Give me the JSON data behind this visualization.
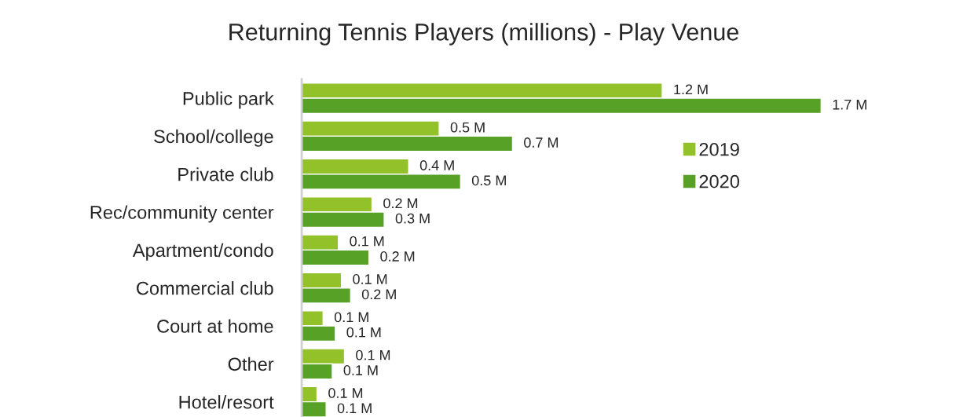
{
  "chart_data": {
    "type": "bar",
    "orientation": "horizontal",
    "title": "Returning Tennis Players (millions) - Play Venue",
    "categories": [
      "Public park",
      "School/college",
      "Private club",
      "Rec/community center",
      "Apartment/condo",
      "Commercial club",
      "Court at home",
      "Other",
      "Hotel/resort"
    ],
    "series": [
      {
        "name": "2019",
        "color": "#92c12a",
        "values": [
          1.18,
          0.45,
          0.35,
          0.23,
          0.12,
          0.13,
          0.07,
          0.14,
          0.05
        ],
        "value_labels": [
          "1.2 M",
          "0.5 M",
          "0.4 M",
          "0.2 M",
          "0.1 M",
          "0.1 M",
          "0.1 M",
          "0.1 M",
          "0.1 M"
        ]
      },
      {
        "name": "2020",
        "color": "#57a126",
        "values": [
          1.7,
          0.69,
          0.52,
          0.27,
          0.22,
          0.16,
          0.11,
          0.1,
          0.08
        ],
        "value_labels": [
          "1.7 M",
          "0.7 M",
          "0.5 M",
          "0.3 M",
          "0.2 M",
          "0.2 M",
          "0.1 M",
          "0.1 M",
          "0.1 M"
        ]
      }
    ],
    "tick_labels": "y",
    "legend": "right",
    "grid": false
  }
}
